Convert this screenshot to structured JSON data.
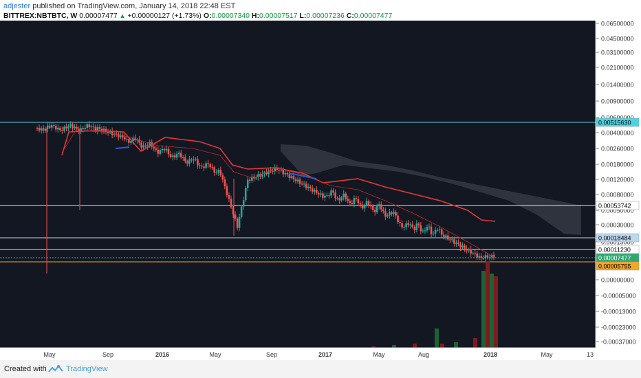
{
  "header": {
    "author": "adjester",
    "published": "published on TradingView.com, January 14, 2018 22:48 EST",
    "symbol": "BITTREX:NBTBTC, W",
    "last": "0.00007477",
    "change": "+0.00000127 (+1.73%)",
    "o_label": "O:",
    "o": "0.00007340",
    "h_label": "H:",
    "h": "0.00007517",
    "l_label": "L:",
    "l": "0.00007236",
    "c_label": "C:",
    "c": "0.00007477"
  },
  "footer": {
    "created": "Created with",
    "brand": "TradingView"
  },
  "colors": {
    "background": "#131722",
    "up": "#26a69a",
    "down": "#ef5350",
    "baseline": "#e0e0e0",
    "cloud": "#3a3d47",
    "cyan_line": "#4fd3e0",
    "orange": "#f5a623"
  },
  "chart_data": {
    "type": "candlestick",
    "x_ticks": [
      "May",
      "Sep",
      "2016",
      "May",
      "Sep",
      "2017",
      "May",
      "Aug",
      "2018",
      "May",
      "13"
    ],
    "y_ticks": [
      "0.06500000",
      "0.04500000",
      "0.03100000",
      "0.02100000",
      "0.01400000",
      "0.00900000",
      "0.00600000",
      "0.00400000",
      "0.00260000",
      "0.00180000",
      "0.00120000",
      "0.00080000",
      "0.00050000",
      "0.00030000",
      "0.00015000",
      "0.00000000",
      "-0.00005000",
      "-0.00013000",
      "-0.00023000",
      "-0.00037000"
    ],
    "price_labels": [
      {
        "value": "0.00515630",
        "color": "cyan"
      },
      {
        "value": "0.00053742",
        "color": "white"
      },
      {
        "value": "0.00018484",
        "color": "lightblue"
      },
      {
        "value": "0.00011230",
        "color": "white"
      },
      {
        "value": "0.00007477",
        "color": "green"
      },
      {
        "value": "0.00005755",
        "color": "orange"
      }
    ]
  }
}
